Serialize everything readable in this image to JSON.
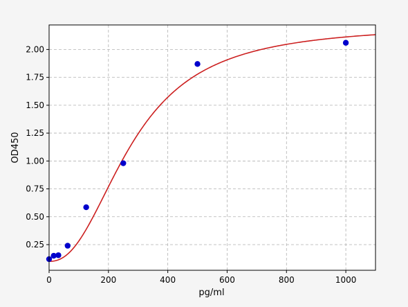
{
  "chart_data": {
    "type": "scatter",
    "title": "",
    "xlabel": "pg/ml",
    "ylabel": "OD450",
    "xlim": [
      0,
      1100
    ],
    "ylim": [
      0.02,
      2.22
    ],
    "x_ticks": [
      0,
      200,
      400,
      600,
      800,
      1000
    ],
    "y_ticks": [
      0.25,
      0.5,
      0.75,
      1.0,
      1.25,
      1.5,
      1.75,
      2.0
    ],
    "x_tick_labels": [
      "0",
      "200",
      "400",
      "600",
      "800",
      "1000"
    ],
    "y_tick_labels": [
      "0.25",
      "0.50",
      "0.75",
      "1.00",
      "1.25",
      "1.50",
      "1.75",
      "2.00"
    ],
    "grid": true,
    "grid_style": "dashed",
    "colors": {
      "points": "#0000cc",
      "curve": "#cc1f1f",
      "grid": "#b0b0b0",
      "background": "#f5f5f5",
      "plot_background": "#ffffff"
    },
    "points": {
      "x": [
        0,
        15.6,
        31.25,
        62.5,
        125,
        250,
        500,
        1000
      ],
      "y": [
        0.12,
        0.15,
        0.155,
        0.24,
        0.585,
        0.98,
        1.87,
        2.06
      ]
    },
    "fit_curve": {
      "type": "4PL",
      "a": 0.1,
      "b": 2.3,
      "c": 280,
      "d": 2.22,
      "x_range": [
        0,
        1100
      ]
    }
  }
}
